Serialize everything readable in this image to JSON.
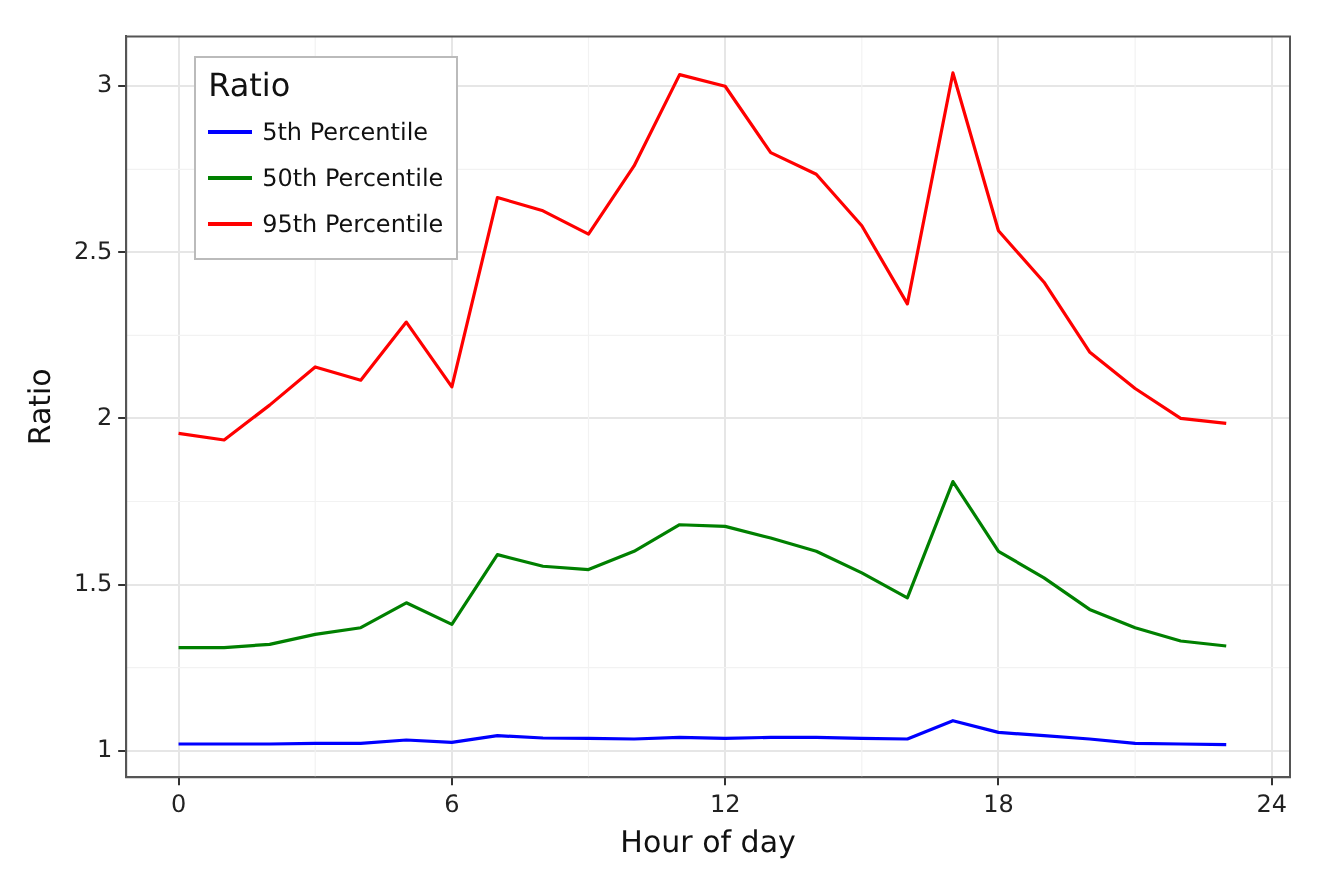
{
  "chart_data": {
    "type": "line",
    "xlabel": "Hour of day",
    "ylabel": "Ratio",
    "legend_title": "Ratio",
    "legend": "top left",
    "grid": true,
    "marker": "none",
    "line_style": "solid",
    "x": [
      0,
      1,
      2,
      3,
      4,
      5,
      6,
      7,
      8,
      9,
      10,
      11,
      12,
      13,
      14,
      15,
      16,
      17,
      18,
      19,
      20,
      21,
      22,
      23
    ],
    "xlim": [
      -1.15,
      24.4
    ],
    "xticks": [
      0,
      6,
      12,
      18,
      24
    ],
    "ylim": [
      0.92,
      3.15
    ],
    "yticks": [
      1.0,
      1.5,
      2.0,
      2.5,
      3.0
    ],
    "series": [
      {
        "name": "5th Percentile",
        "color": "#0000ff",
        "values": [
          1.02,
          1.02,
          1.02,
          1.022,
          1.022,
          1.032,
          1.025,
          1.045,
          1.038,
          1.037,
          1.035,
          1.04,
          1.037,
          1.04,
          1.04,
          1.037,
          1.035,
          1.09,
          1.055,
          1.045,
          1.035,
          1.022,
          1.02,
          1.018
        ]
      },
      {
        "name": "50th Percentile",
        "color": "#008000",
        "values": [
          1.31,
          1.31,
          1.32,
          1.35,
          1.37,
          1.445,
          1.38,
          1.59,
          1.555,
          1.545,
          1.6,
          1.68,
          1.675,
          1.64,
          1.6,
          1.535,
          1.46,
          1.81,
          1.6,
          1.52,
          1.425,
          1.37,
          1.33,
          1.315
        ]
      },
      {
        "name": "95th Percentile",
        "color": "#ff0000",
        "values": [
          1.955,
          1.935,
          2.04,
          2.155,
          2.115,
          2.29,
          2.095,
          2.665,
          2.625,
          2.555,
          2.76,
          3.035,
          3.0,
          2.8,
          2.735,
          2.58,
          2.345,
          3.04,
          2.565,
          2.41,
          2.2,
          2.09,
          2.0,
          1.985
        ]
      }
    ]
  }
}
